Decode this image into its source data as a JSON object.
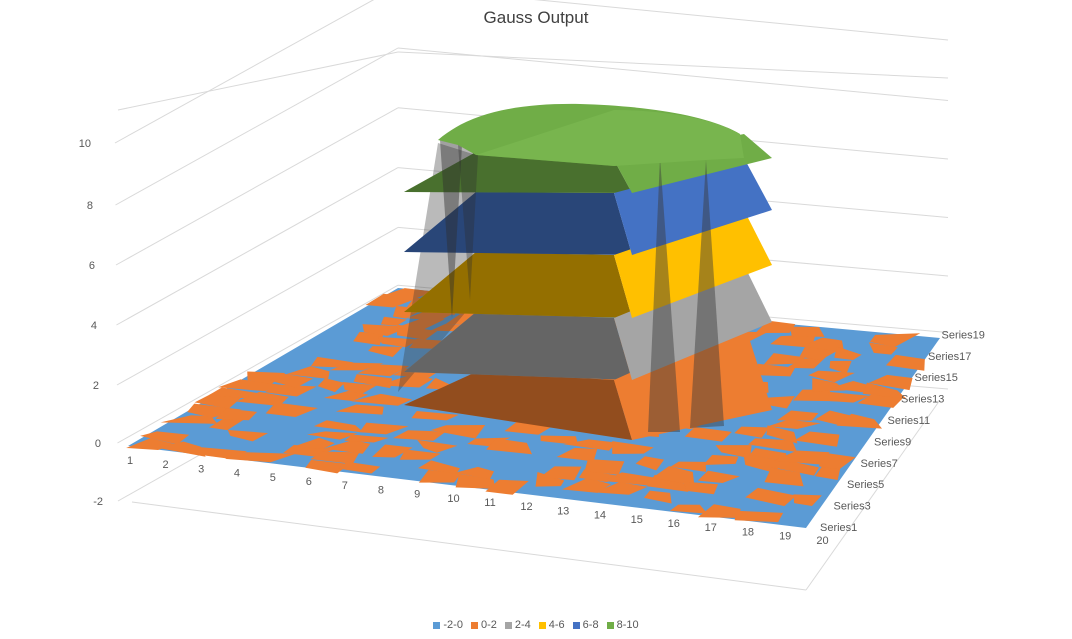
{
  "chart_data": {
    "type": "surface",
    "title": "Gauss Output",
    "x_categories": [
      "1",
      "2",
      "3",
      "4",
      "5",
      "6",
      "7",
      "8",
      "9",
      "10",
      "11",
      "12",
      "13",
      "14",
      "15",
      "16",
      "17",
      "18",
      "19",
      "20"
    ],
    "series_labels": [
      "Series1",
      "Series3",
      "Series5",
      "Series7",
      "Series9",
      "Series11",
      "Series13",
      "Series15",
      "Series17",
      "Series19"
    ],
    "z_ticks": [
      "-2",
      "0",
      "2",
      "4",
      "6",
      "8",
      "10"
    ],
    "z_range": [
      -2,
      10
    ],
    "plateau": {
      "x_range": [
        9,
        16
      ],
      "series_range": [
        9,
        20
      ],
      "height": 10
    },
    "legend": [
      {
        "label": "-2-0",
        "color": "#5B9BD5"
      },
      {
        "label": "0-2",
        "color": "#ED7D31"
      },
      {
        "label": "2-4",
        "color": "#A5A5A5"
      },
      {
        "label": "4-6",
        "color": "#FFC000"
      },
      {
        "label": "6-8",
        "color": "#4472C4"
      },
      {
        "label": "8-10",
        "color": "#70AD47"
      }
    ]
  }
}
